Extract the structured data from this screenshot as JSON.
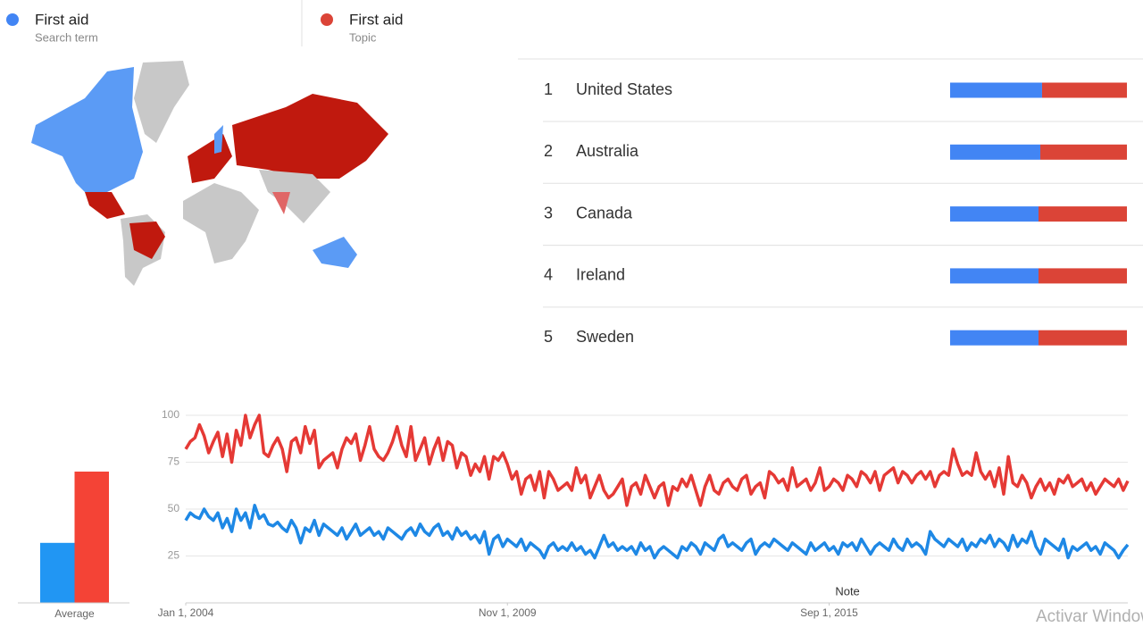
{
  "legend": [
    {
      "name": "First aid",
      "subtitle": "Search term",
      "color": "#4285f4"
    },
    {
      "name": "First aid",
      "subtitle": "Topic",
      "color": "#db4437"
    }
  ],
  "regions": [
    {
      "rank": 1,
      "name": "United States",
      "values": [
        52,
        48
      ]
    },
    {
      "rank": 2,
      "name": "Australia",
      "values": [
        51,
        49
      ]
    },
    {
      "rank": 3,
      "name": "Canada",
      "values": [
        50,
        50
      ]
    },
    {
      "rank": 4,
      "name": "Ireland",
      "values": [
        50,
        50
      ]
    },
    {
      "rank": 5,
      "name": "Sweden",
      "values": [
        50,
        50
      ]
    }
  ],
  "chart_data": [
    {
      "type": "bar",
      "categories": [
        "Average"
      ],
      "ylim": [
        0,
        100
      ],
      "series": [
        {
          "color": "#2196f3",
          "values": [
            32
          ]
        },
        {
          "color": "#f44336",
          "values": [
            70
          ]
        }
      ]
    },
    {
      "type": "line",
      "ylim": [
        0,
        100
      ],
      "yticks": [
        25,
        50,
        75,
        100
      ],
      "grid": true,
      "xlim": [
        0,
        205
      ],
      "xticks": [
        {
          "value": 0,
          "label": "Jan 1, 2004"
        },
        {
          "value": 70,
          "label": "Nov 1, 2009"
        },
        {
          "value": 140,
          "label": "Sep 1, 2015"
        }
      ],
      "annotations": [
        {
          "text": "Note",
          "x": 144
        }
      ],
      "series": [
        {
          "color": "#e53935",
          "values": [
            82,
            86,
            88,
            95,
            89,
            80,
            86,
            91,
            78,
            90,
            75,
            92,
            84,
            100,
            88,
            95,
            100,
            80,
            78,
            84,
            88,
            82,
            70,
            86,
            88,
            80,
            94,
            85,
            92,
            72,
            76,
            78,
            80,
            72,
            82,
            88,
            85,
            90,
            76,
            84,
            94,
            82,
            78,
            76,
            80,
            86,
            94,
            84,
            78,
            94,
            76,
            82,
            88,
            74,
            82,
            88,
            76,
            86,
            84,
            72,
            80,
            78,
            68,
            74,
            70,
            78,
            66,
            78,
            76,
            80,
            74,
            66,
            70,
            58,
            66,
            68,
            60,
            70,
            56,
            70,
            66,
            60,
            62,
            64,
            60,
            72,
            64,
            68,
            56,
            62,
            68,
            60,
            56,
            58,
            62,
            66,
            52,
            62,
            64,
            58,
            68,
            62,
            56,
            62,
            64,
            52,
            62,
            60,
            66,
            62,
            68,
            60,
            52,
            62,
            68,
            60,
            58,
            64,
            66,
            62,
            60,
            66,
            68,
            58,
            62,
            64,
            56,
            70,
            68,
            64,
            66,
            60,
            72,
            62,
            64,
            66,
            60,
            64,
            72,
            60,
            62,
            66,
            64,
            60,
            68,
            66,
            62,
            70,
            68,
            64,
            70,
            60,
            68,
            70,
            72,
            64,
            70,
            68,
            64,
            68,
            70,
            66,
            70,
            62,
            68,
            70,
            68,
            82,
            74,
            68,
            70,
            68,
            80,
            70,
            66,
            70,
            62,
            72,
            58,
            78,
            64,
            62,
            68,
            64,
            56,
            62,
            66,
            60,
            64,
            58,
            66,
            64,
            68,
            62,
            64,
            66,
            60,
            64,
            58,
            62,
            66,
            64,
            62,
            66,
            60,
            65
          ]
        },
        {
          "color": "#1e88e5",
          "values": [
            44,
            48,
            46,
            45,
            50,
            46,
            44,
            48,
            40,
            45,
            38,
            50,
            44,
            48,
            40,
            52,
            45,
            47,
            42,
            41,
            43,
            40,
            38,
            44,
            40,
            32,
            40,
            38,
            44,
            36,
            42,
            40,
            38,
            36,
            40,
            34,
            38,
            42,
            36,
            38,
            40,
            36,
            38,
            34,
            40,
            38,
            36,
            34,
            38,
            40,
            36,
            42,
            38,
            36,
            40,
            42,
            36,
            38,
            34,
            40,
            36,
            38,
            34,
            36,
            32,
            38,
            26,
            34,
            36,
            30,
            34,
            32,
            30,
            34,
            28,
            32,
            30,
            28,
            24,
            30,
            32,
            28,
            30,
            28,
            32,
            28,
            30,
            26,
            28,
            24,
            30,
            36,
            30,
            32,
            28,
            30,
            28,
            30,
            26,
            32,
            28,
            30,
            24,
            28,
            30,
            28,
            26,
            24,
            30,
            28,
            32,
            30,
            26,
            32,
            30,
            28,
            34,
            36,
            30,
            32,
            30,
            28,
            32,
            34,
            26,
            30,
            32,
            30,
            34,
            32,
            30,
            28,
            32,
            30,
            28,
            26,
            32,
            28,
            30,
            32,
            28,
            30,
            26,
            32,
            30,
            32,
            28,
            34,
            30,
            26,
            30,
            32,
            30,
            28,
            34,
            30,
            28,
            34,
            30,
            32,
            30,
            26,
            38,
            34,
            32,
            30,
            34,
            32,
            30,
            34,
            28,
            32,
            30,
            34,
            32,
            36,
            30,
            34,
            32,
            28,
            36,
            30,
            34,
            32,
            38,
            30,
            26,
            34,
            32,
            30,
            28,
            34,
            24,
            30,
            28,
            30,
            32,
            28,
            30,
            26,
            32,
            30,
            28,
            24,
            28,
            31
          ]
        }
      ]
    }
  ],
  "watermark": "Activar Windows"
}
